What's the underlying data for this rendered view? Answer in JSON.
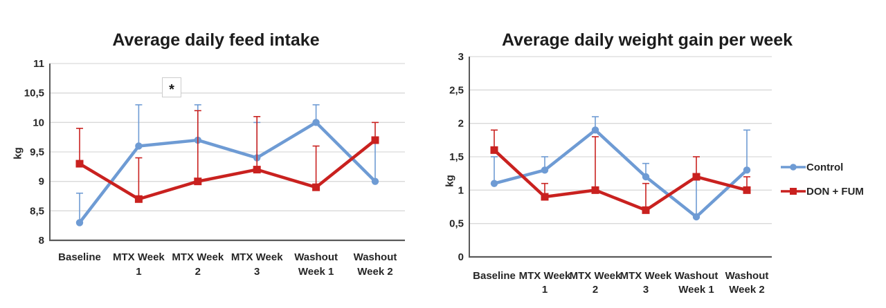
{
  "page": {
    "background": "#ffffff"
  },
  "legend": {
    "items": [
      {
        "label": "Control",
        "color": "#6E9BD4",
        "marker": "circle"
      },
      {
        "label": "DON + FUM",
        "color": "#C9211F",
        "marker": "square"
      }
    ]
  },
  "chart_data": [
    {
      "type": "line",
      "title": "Average daily feed intake",
      "ylabel": "kg",
      "ylim": [
        8,
        11
      ],
      "ytick_step": 0.5,
      "ytick_labels": [
        "8",
        "8,5",
        "9",
        "9,5",
        "10",
        "10,5",
        "11"
      ],
      "categories": [
        [
          "Baseline",
          ""
        ],
        [
          "MTX Week",
          "1"
        ],
        [
          "MTX Week",
          "2"
        ],
        [
          "MTX Week",
          "3"
        ],
        [
          "Washout",
          "Week 1"
        ],
        [
          "Washout",
          "Week 2"
        ]
      ],
      "grid": true,
      "legend_position": "none",
      "annotation": {
        "text": "*",
        "between_categories": [
          1,
          2
        ],
        "value": 10.6
      },
      "series": [
        {
          "name": "Control",
          "color": "#6E9BD4",
          "marker": "circle",
          "values": [
            8.3,
            9.6,
            9.7,
            9.4,
            10.0,
            9.0
          ],
          "err_up": [
            0.5,
            0.7,
            0.6,
            0.6,
            0.3,
            0.7
          ]
        },
        {
          "name": "DON + FUM",
          "color": "#C9211F",
          "marker": "square",
          "values": [
            9.3,
            8.7,
            9.0,
            9.2,
            8.9,
            9.7
          ],
          "err_up": [
            0.6,
            0.7,
            1.2,
            0.9,
            0.7,
            0.3
          ]
        }
      ]
    },
    {
      "type": "line",
      "title": "Average daily weight gain per week",
      "ylabel": "kg",
      "ylim": [
        0,
        3
      ],
      "ytick_step": 0.5,
      "ytick_labels": [
        "0",
        "0,5",
        "1",
        "1,5",
        "2",
        "2,5",
        "3"
      ],
      "categories": [
        [
          "Baseline",
          ""
        ],
        [
          "MTX Week",
          "1"
        ],
        [
          "MTX Week",
          "2"
        ],
        [
          "MTX Week",
          "3"
        ],
        [
          "Washout",
          "Week 1"
        ],
        [
          "Washout",
          "Week 2"
        ]
      ],
      "grid": true,
      "legend_position": "right",
      "series": [
        {
          "name": "Control",
          "color": "#6E9BD4",
          "marker": "circle",
          "values": [
            1.1,
            1.3,
            1.9,
            1.2,
            0.6,
            1.3
          ],
          "err_up": [
            0.4,
            0.2,
            0.2,
            0.2,
            0.6,
            0.6
          ]
        },
        {
          "name": "DON + FUM",
          "color": "#C9211F",
          "marker": "square",
          "values": [
            1.6,
            0.9,
            1.0,
            0.7,
            1.2,
            1.0
          ],
          "err_up": [
            0.3,
            0.2,
            0.8,
            0.4,
            0.3,
            0.2
          ]
        }
      ]
    }
  ]
}
